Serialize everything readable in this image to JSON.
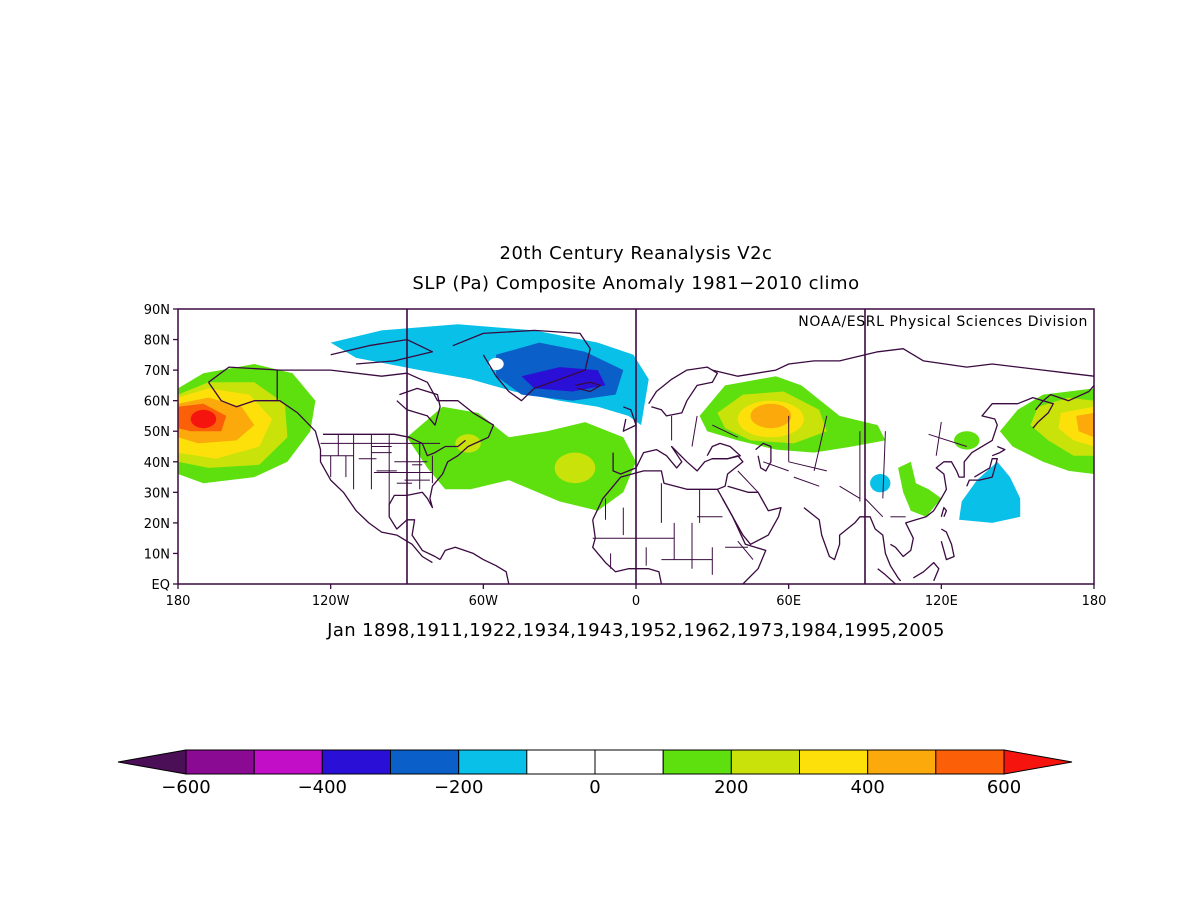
{
  "title_line1": "20th Century Reanalysis V2c",
  "title_line2": "SLP (Pa) Composite Anomaly 1981−2010 climo",
  "credit": "NOAA/ESRL Physical Sciences Division",
  "years_label": "Jan 1898,1911,1922,1934,1943,1952,1962,1973,1984,1995,2005",
  "map": {
    "lat_ticks": [
      "EQ",
      "10N",
      "20N",
      "30N",
      "40N",
      "50N",
      "60N",
      "70N",
      "80N",
      "90N"
    ],
    "lon_ticks": [
      "180",
      "120W",
      "60W",
      "0",
      "60E",
      "120E",
      "180"
    ],
    "lat_values": [
      0,
      10,
      20,
      30,
      40,
      50,
      60,
      70,
      80,
      90
    ],
    "lon_values": [
      -180,
      -120,
      -60,
      0,
      60,
      120,
      180
    ],
    "vertical_divider_lons": [
      -90,
      0,
      90
    ]
  },
  "colorbar": {
    "colors": [
      "#4b0f57",
      "#8b0a94",
      "#c20ec6",
      "#2a10d6",
      "#0b5fc8",
      "#08c0e8",
      "#ffffff",
      "#ffffff",
      "#5ee00e",
      "#c8e20a",
      "#fde00a",
      "#fba90b",
      "#fb6008",
      "#f5150e"
    ],
    "labels": [
      "−600",
      "−400",
      "−200",
      "0",
      "200",
      "400",
      "600"
    ],
    "label_values": [
      -600,
      -400,
      -200,
      0,
      200,
      400,
      600
    ]
  },
  "colors": {
    "coast": "#3a0a40",
    "frame": "#3a0a40",
    "lv100": "#5ee00e",
    "lv200": "#c8e20a",
    "lv300": "#fde00a",
    "lv400": "#fba90b",
    "lv500": "#fb6008",
    "lv600": "#f5150e",
    "lvm100": "#08c0e8",
    "lvm200": "#0b5fc8",
    "lvm300": "#2a10d6"
  }
}
